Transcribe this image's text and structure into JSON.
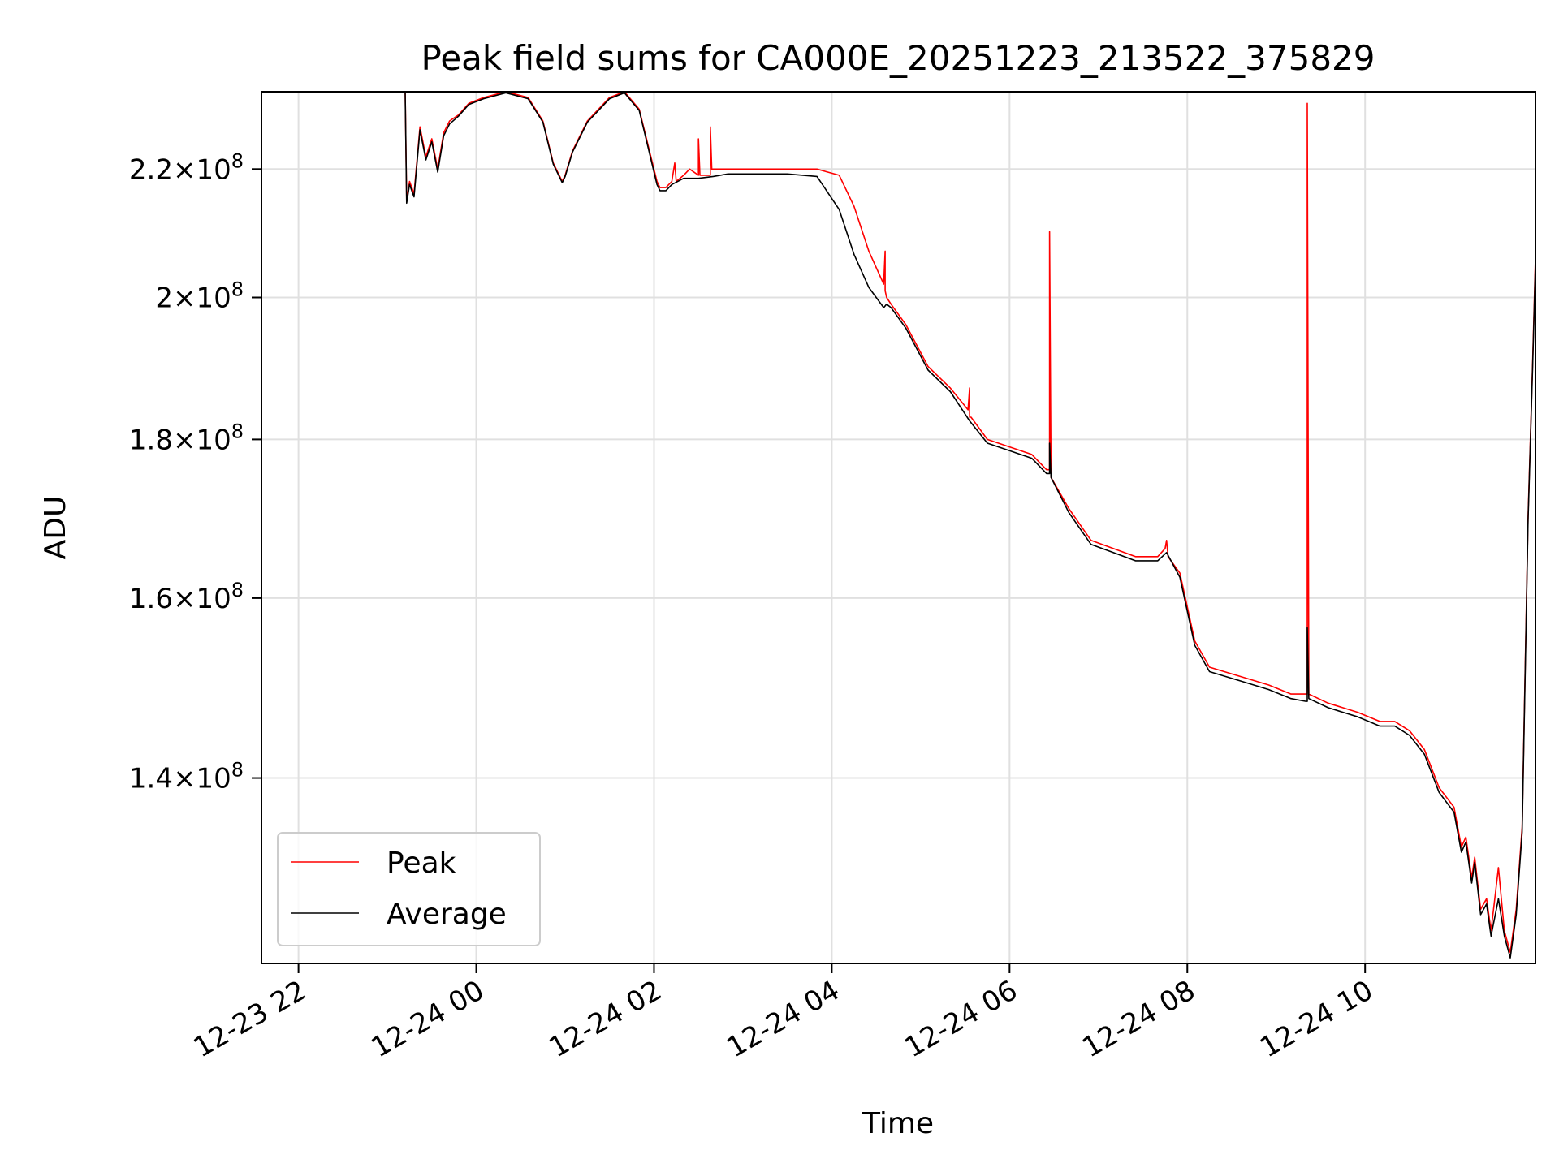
{
  "chart_data": {
    "type": "line",
    "title": "Peak field sums for CA000E_20251223_213522_375829",
    "xlabel": "Time",
    "ylabel": "ADU",
    "y_scale": "log",
    "ylim": [
      122000000,
      233000000
    ],
    "xlim": [
      "2025-12-23T21:35",
      "2025-12-24T11:55"
    ],
    "grid": true,
    "legend": {
      "position": "lower left",
      "entries": [
        "Peak",
        "Average"
      ]
    },
    "x_ticks": [
      {
        "t": "2025-12-23T22:00",
        "label": "12-23 22"
      },
      {
        "t": "2025-12-24T00:00",
        "label": "12-24 00"
      },
      {
        "t": "2025-12-24T02:00",
        "label": "12-24 02"
      },
      {
        "t": "2025-12-24T04:00",
        "label": "12-24 04"
      },
      {
        "t": "2025-12-24T06:00",
        "label": "12-24 06"
      },
      {
        "t": "2025-12-24T08:00",
        "label": "12-24 08"
      },
      {
        "t": "2025-12-24T10:00",
        "label": "12-24 10"
      }
    ],
    "y_ticks": [
      {
        "value": 140000000,
        "mantissa": "1.4",
        "exponent": "8"
      },
      {
        "value": 160000000,
        "mantissa": "1.6",
        "exponent": "8"
      },
      {
        "value": 180000000,
        "mantissa": "1.8",
        "exponent": "8"
      },
      {
        "value": 200000000,
        "mantissa": "2",
        "exponent": "8"
      },
      {
        "value": 220000000,
        "mantissa": "2.2",
        "exponent": "8"
      }
    ],
    "series": [
      {
        "name": "Peak",
        "color": "#ff0000",
        "x": [
          "2025-12-23T23:12",
          "2025-12-23T23:13",
          "2025-12-23T23:15",
          "2025-12-23T23:18",
          "2025-12-23T23:22",
          "2025-12-23T23:26",
          "2025-12-23T23:30",
          "2025-12-23T23:34",
          "2025-12-23T23:38",
          "2025-12-23T23:42",
          "2025-12-23T23:48",
          "2025-12-23T23:55",
          "2025-12-24T00:05",
          "2025-12-24T00:20",
          "2025-12-24T00:35",
          "2025-12-24T00:45",
          "2025-12-24T00:52",
          "2025-12-24T00:58",
          "2025-12-24T01:00",
          "2025-12-24T01:05",
          "2025-12-24T01:15",
          "2025-12-24T01:30",
          "2025-12-24T01:40",
          "2025-12-24T01:50",
          "2025-12-24T02:02",
          "2025-12-24T02:04",
          "2025-12-24T02:08",
          "2025-12-24T02:12",
          "2025-12-24T02:14",
          "2025-12-24T02:15",
          "2025-12-24T02:20",
          "2025-12-24T02:24",
          "2025-12-24T02:30",
          "2025-12-24T02:30",
          "2025-12-24T02:31",
          "2025-12-24T02:38",
          "2025-12-24T02:38",
          "2025-12-24T02:39",
          "2025-12-24T02:50",
          "2025-12-24T03:10",
          "2025-12-24T03:30",
          "2025-12-24T03:50",
          "2025-12-24T04:05",
          "2025-12-24T04:15",
          "2025-12-24T04:25",
          "2025-12-24T04:35",
          "2025-12-24T04:36",
          "2025-12-24T04:36",
          "2025-12-24T04:37",
          "2025-12-24T04:40",
          "2025-12-24T04:50",
          "2025-12-24T05:05",
          "2025-12-24T05:20",
          "2025-12-24T05:32",
          "2025-12-24T05:33",
          "2025-12-24T05:33",
          "2025-12-24T05:34",
          "2025-12-24T05:45",
          "2025-12-24T06:00",
          "2025-12-24T06:15",
          "2025-12-24T06:25",
          "2025-12-24T06:27",
          "2025-12-24T06:27",
          "2025-12-24T06:28",
          "2025-12-24T06:40",
          "2025-12-24T06:55",
          "2025-12-24T07:10",
          "2025-12-24T07:25",
          "2025-12-24T07:40",
          "2025-12-24T07:45",
          "2025-12-24T07:46",
          "2025-12-24T07:47",
          "2025-12-24T07:55",
          "2025-12-24T08:05",
          "2025-12-24T08:15",
          "2025-12-24T08:35",
          "2025-12-24T08:55",
          "2025-12-24T09:10",
          "2025-12-24T09:20",
          "2025-12-24T09:21",
          "2025-12-24T09:21",
          "2025-12-24T09:22",
          "2025-12-24T09:35",
          "2025-12-24T09:55",
          "2025-12-24T10:10",
          "2025-12-24T10:20",
          "2025-12-24T10:30",
          "2025-12-24T10:40",
          "2025-12-24T10:50",
          "2025-12-24T11:00",
          "2025-12-24T11:05",
          "2025-12-24T11:08",
          "2025-12-24T11:12",
          "2025-12-24T11:14",
          "2025-12-24T11:18",
          "2025-12-24T11:22",
          "2025-12-24T11:25",
          "2025-12-24T11:30",
          "2025-12-24T11:34",
          "2025-12-24T11:38",
          "2025-12-24T11:42",
          "2025-12-24T11:46",
          "2025-12-24T11:50",
          "2025-12-24T11:53",
          "2025-12-24T11:55"
        ],
        "y": [
          233000000,
          215000000,
          218000000,
          216000000,
          227000000,
          222000000,
          225000000,
          220000000,
          226000000,
          228000000,
          229000000,
          231000000,
          232000000,
          233000000,
          232000000,
          228000000,
          221000000,
          218000000,
          219000000,
          223000000,
          228000000,
          232000000,
          233000000,
          230000000,
          218000000,
          217000000,
          217000000,
          218000000,
          221000000,
          218000000,
          219000000,
          220000000,
          219000000,
          225000000,
          219000000,
          219000000,
          227000000,
          220000000,
          220000000,
          220000000,
          220000000,
          220000000,
          219000000,
          214000000,
          207000000,
          202000000,
          207000000,
          201000000,
          200000000,
          199000000,
          196000000,
          190000000,
          187000000,
          184000000,
          187000000,
          183000000,
          183000000,
          180000000,
          179000000,
          178000000,
          176000000,
          176000000,
          210000000,
          175000000,
          171000000,
          167000000,
          166000000,
          165000000,
          165000000,
          166000000,
          167000000,
          165000000,
          163000000,
          155000000,
          152000000,
          151000000,
          150000000,
          149000000,
          149000000,
          149000000,
          231000000,
          149000000,
          148000000,
          147000000,
          146000000,
          146000000,
          145000000,
          143000000,
          139000000,
          137000000,
          133000000,
          134000000,
          130000000,
          132000000,
          127000000,
          128000000,
          125000000,
          131000000,
          125000000,
          123000000,
          127000000,
          135000000,
          170000000,
          190000000,
          206000000
        ]
      },
      {
        "name": "Average",
        "color": "#000000",
        "x": [
          "2025-12-23T23:12",
          "2025-12-23T23:13",
          "2025-12-23T23:15",
          "2025-12-23T23:18",
          "2025-12-23T23:22",
          "2025-12-23T23:26",
          "2025-12-23T23:30",
          "2025-12-23T23:34",
          "2025-12-23T23:38",
          "2025-12-23T23:42",
          "2025-12-23T23:48",
          "2025-12-23T23:55",
          "2025-12-24T00:05",
          "2025-12-24T00:20",
          "2025-12-24T00:35",
          "2025-12-24T00:45",
          "2025-12-24T00:52",
          "2025-12-24T00:58",
          "2025-12-24T01:00",
          "2025-12-24T01:05",
          "2025-12-24T01:15",
          "2025-12-24T01:30",
          "2025-12-24T01:40",
          "2025-12-24T01:50",
          "2025-12-24T02:02",
          "2025-12-24T02:04",
          "2025-12-24T02:08",
          "2025-12-24T02:12",
          "2025-12-24T02:20",
          "2025-12-24T02:30",
          "2025-12-24T02:40",
          "2025-12-24T02:50",
          "2025-12-24T03:10",
          "2025-12-24T03:30",
          "2025-12-24T03:50",
          "2025-12-24T04:05",
          "2025-12-24T04:15",
          "2025-12-24T04:25",
          "2025-12-24T04:35",
          "2025-12-24T04:37",
          "2025-12-24T04:40",
          "2025-12-24T04:50",
          "2025-12-24T05:05",
          "2025-12-24T05:20",
          "2025-12-24T05:33",
          "2025-12-24T05:45",
          "2025-12-24T06:00",
          "2025-12-24T06:15",
          "2025-12-24T06:25",
          "2025-12-24T06:27",
          "2025-12-24T06:27",
          "2025-12-24T06:28",
          "2025-12-24T06:40",
          "2025-12-24T06:55",
          "2025-12-24T07:10",
          "2025-12-24T07:25",
          "2025-12-24T07:40",
          "2025-12-24T07:46",
          "2025-12-24T07:55",
          "2025-12-24T08:05",
          "2025-12-24T08:15",
          "2025-12-24T08:35",
          "2025-12-24T08:55",
          "2025-12-24T09:10",
          "2025-12-24T09:20",
          "2025-12-24T09:21",
          "2025-12-24T09:21",
          "2025-12-24T09:22",
          "2025-12-24T09:35",
          "2025-12-24T09:55",
          "2025-12-24T10:10",
          "2025-12-24T10:20",
          "2025-12-24T10:30",
          "2025-12-24T10:40",
          "2025-12-24T10:50",
          "2025-12-24T11:00",
          "2025-12-24T11:05",
          "2025-12-24T11:08",
          "2025-12-24T11:12",
          "2025-12-24T11:14",
          "2025-12-24T11:18",
          "2025-12-24T11:22",
          "2025-12-24T11:25",
          "2025-12-24T11:30",
          "2025-12-24T11:34",
          "2025-12-24T11:38",
          "2025-12-24T11:42",
          "2025-12-24T11:46",
          "2025-12-24T11:50",
          "2025-12-24T11:53",
          "2025-12-24T11:55"
        ],
        "y": [
          233000000,
          214500000,
          217500000,
          215500000,
          226500000,
          221500000,
          224500000,
          219500000,
          225500000,
          227500000,
          228800000,
          230800000,
          231800000,
          232800000,
          231800000,
          227800000,
          220800000,
          217800000,
          218800000,
          222800000,
          227800000,
          231800000,
          232800000,
          229800000,
          217500000,
          216500000,
          216500000,
          217500000,
          218500000,
          218500000,
          218800000,
          219200000,
          219200000,
          219200000,
          218800000,
          213500000,
          206500000,
          201500000,
          198500000,
          199000000,
          198500000,
          195500000,
          189500000,
          186500000,
          182500000,
          179500000,
          178500000,
          177500000,
          175500000,
          175500000,
          179500000,
          175000000,
          170500000,
          166500000,
          165500000,
          164500000,
          164500000,
          165500000,
          162500000,
          154500000,
          151500000,
          150500000,
          149500000,
          148500000,
          148200000,
          148200000,
          156500000,
          148500000,
          147500000,
          146500000,
          145500000,
          145500000,
          144500000,
          142500000,
          138500000,
          136500000,
          132500000,
          133500000,
          129500000,
          131500000,
          126500000,
          127500000,
          124500000,
          128000000,
          124500000,
          122500000,
          126500000,
          134500000,
          169500000,
          189500000,
          205000000
        ]
      }
    ]
  }
}
